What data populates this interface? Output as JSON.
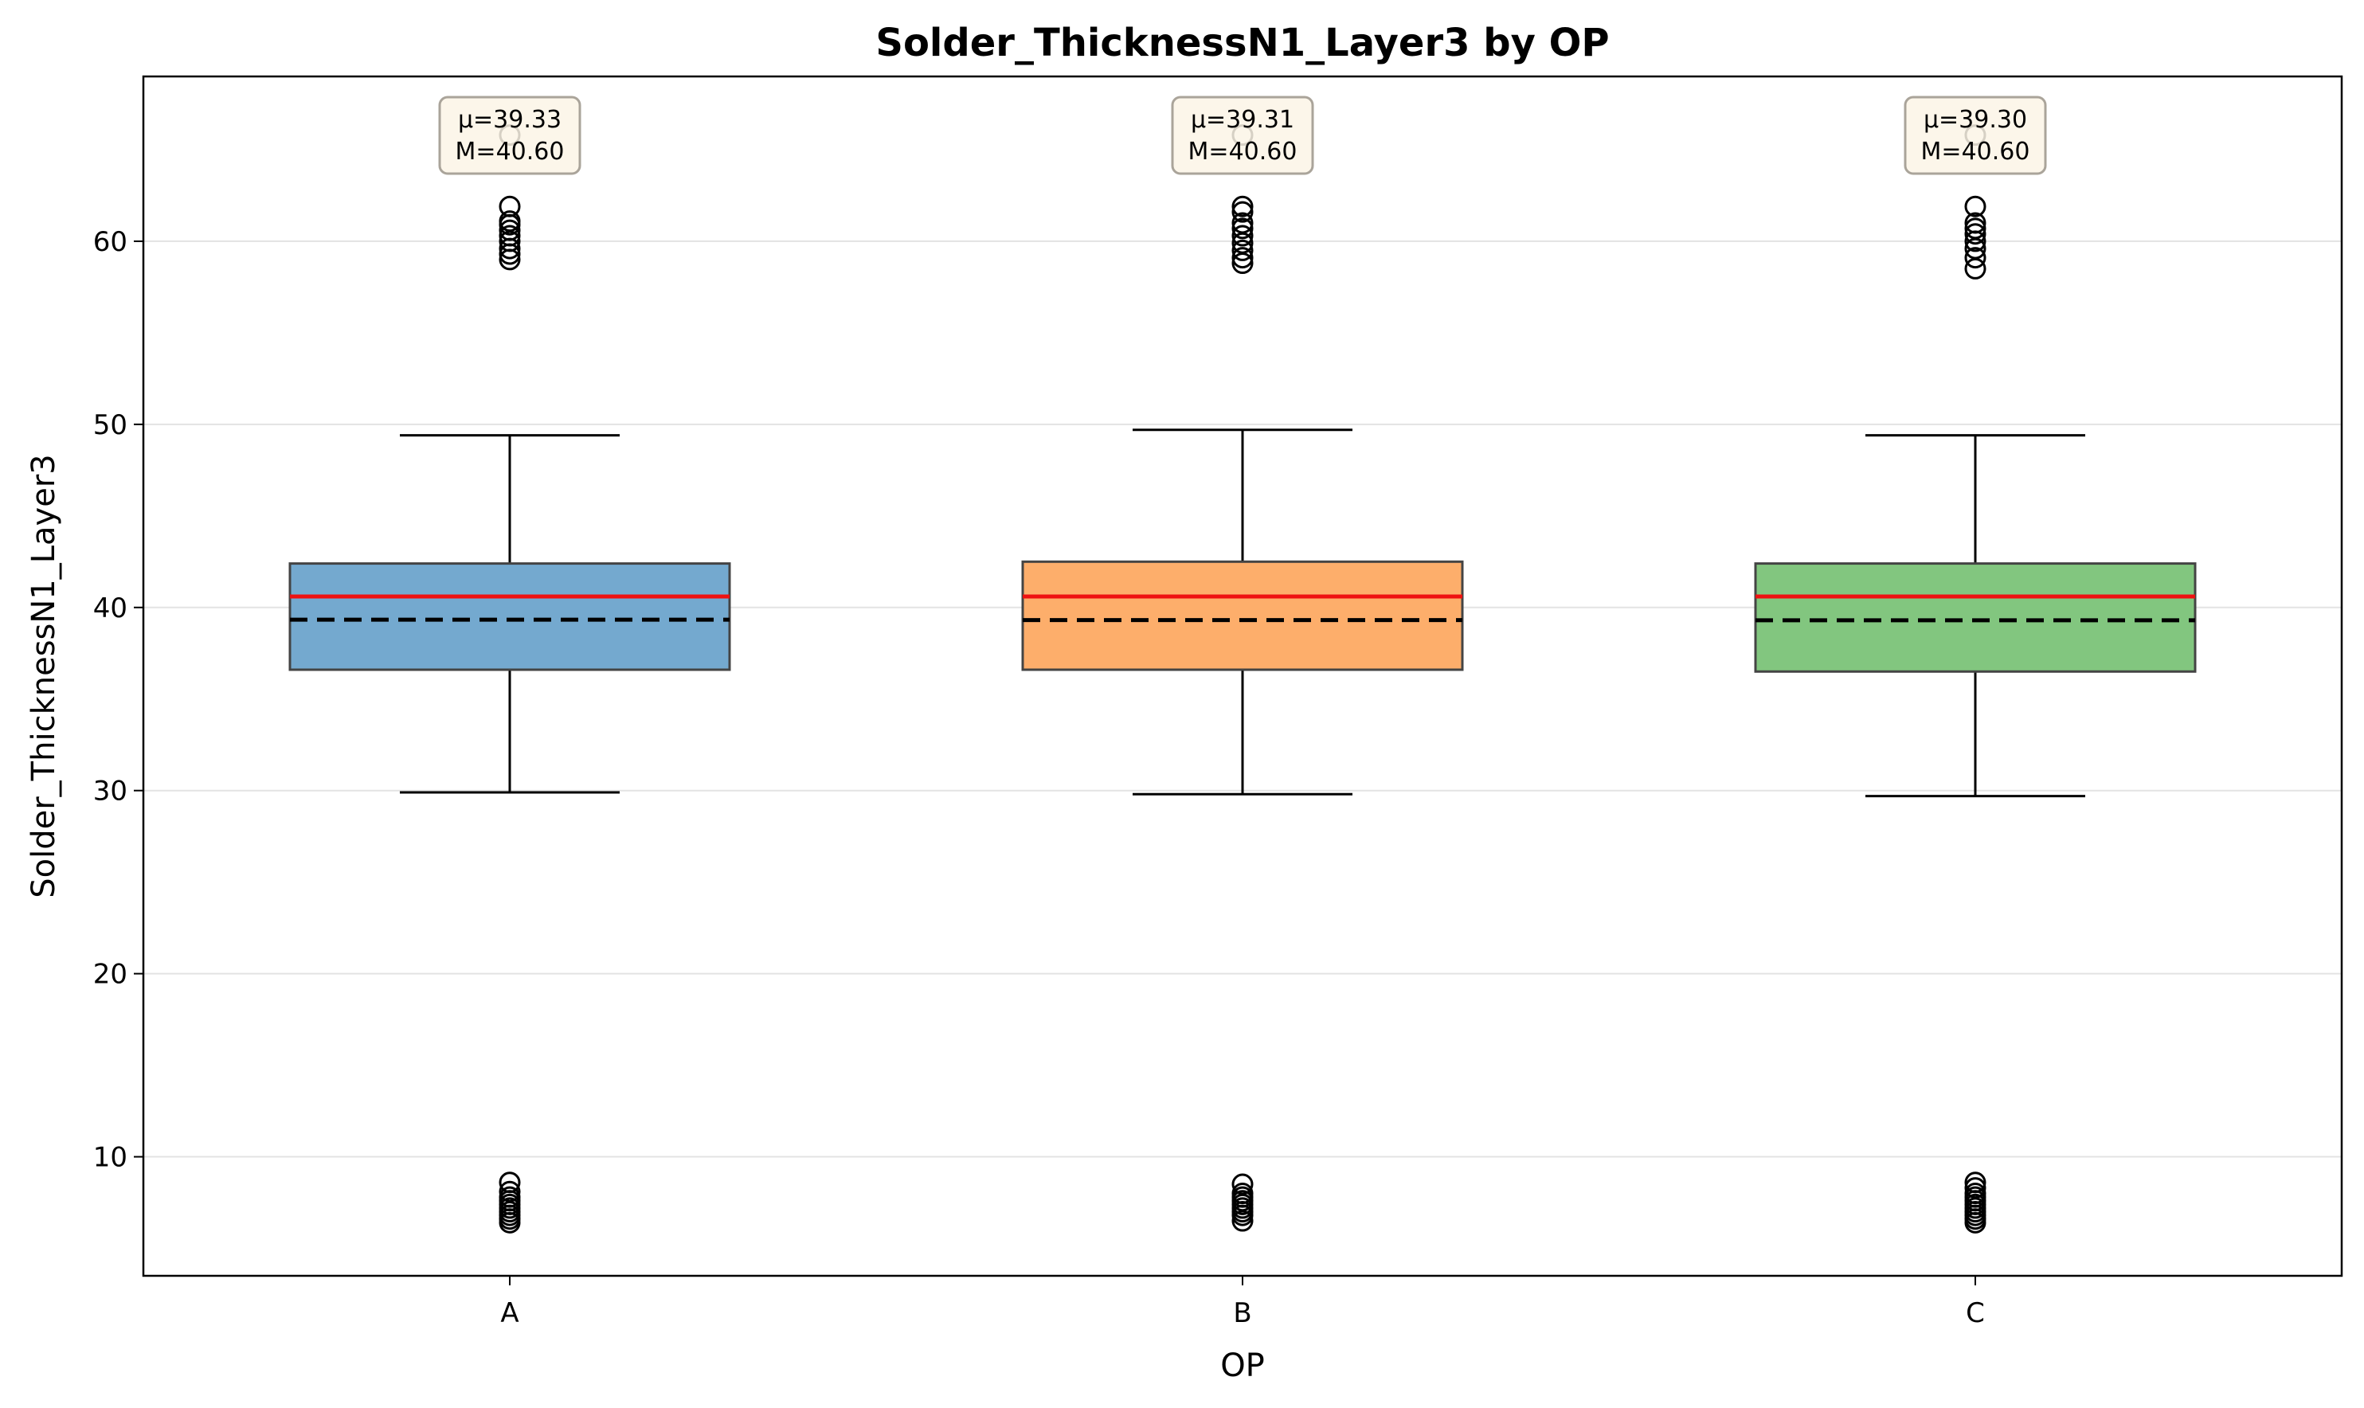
{
  "chart_data": {
    "type": "box",
    "title": "Solder_ThicknessN1_Layer3 by OP",
    "xlabel": "OP",
    "ylabel": "Solder_ThicknessN1_Layer3",
    "ylim": [
      3.5,
      69
    ],
    "yticks": [
      10,
      20,
      30,
      40,
      50,
      60
    ],
    "grid": "y",
    "categories": [
      "A",
      "B",
      "C"
    ],
    "boxes": [
      {
        "category": "A",
        "color": "#74a9cf",
        "whisker_low": 29.9,
        "q1": 36.6,
        "median": 40.6,
        "mean": 39.33,
        "q3": 42.4,
        "whisker_high": 49.4,
        "outliers": [
          59.0,
          59.3,
          59.6,
          60.0,
          60.3,
          60.6,
          60.9,
          61.1,
          61.9,
          65.8,
          6.4,
          6.6,
          6.8,
          7.0,
          7.2,
          7.4,
          7.6,
          7.8,
          8.1,
          8.6
        ],
        "annotation": [
          "μ=39.33",
          "M=40.60"
        ]
      },
      {
        "category": "B",
        "color": "#fdae6b",
        "whisker_low": 29.8,
        "q1": 36.6,
        "median": 40.6,
        "mean": 39.31,
        "q3": 42.5,
        "whisker_high": 49.7,
        "outliers": [
          58.8,
          59.1,
          59.5,
          59.9,
          60.3,
          60.7,
          61.0,
          61.6,
          61.9,
          65.8,
          6.5,
          6.8,
          7.0,
          7.2,
          7.4,
          7.6,
          7.8,
          8.0,
          8.5
        ],
        "annotation": [
          "μ=39.31",
          "M=40.60"
        ]
      },
      {
        "category": "C",
        "color": "#82c67f",
        "whisker_low": 29.7,
        "q1": 36.5,
        "median": 40.6,
        "mean": 39.3,
        "q3": 42.4,
        "whisker_high": 49.4,
        "outliers": [
          58.5,
          59.1,
          59.6,
          60.0,
          60.4,
          60.7,
          61.0,
          61.9,
          65.8,
          6.4,
          6.6,
          6.8,
          7.0,
          7.2,
          7.4,
          7.6,
          7.8,
          8.0,
          8.3,
          8.6
        ],
        "annotation": [
          "μ=39.30",
          "M=40.60"
        ]
      }
    ],
    "median_color": "#ee1111",
    "mean_color": "#000000"
  }
}
